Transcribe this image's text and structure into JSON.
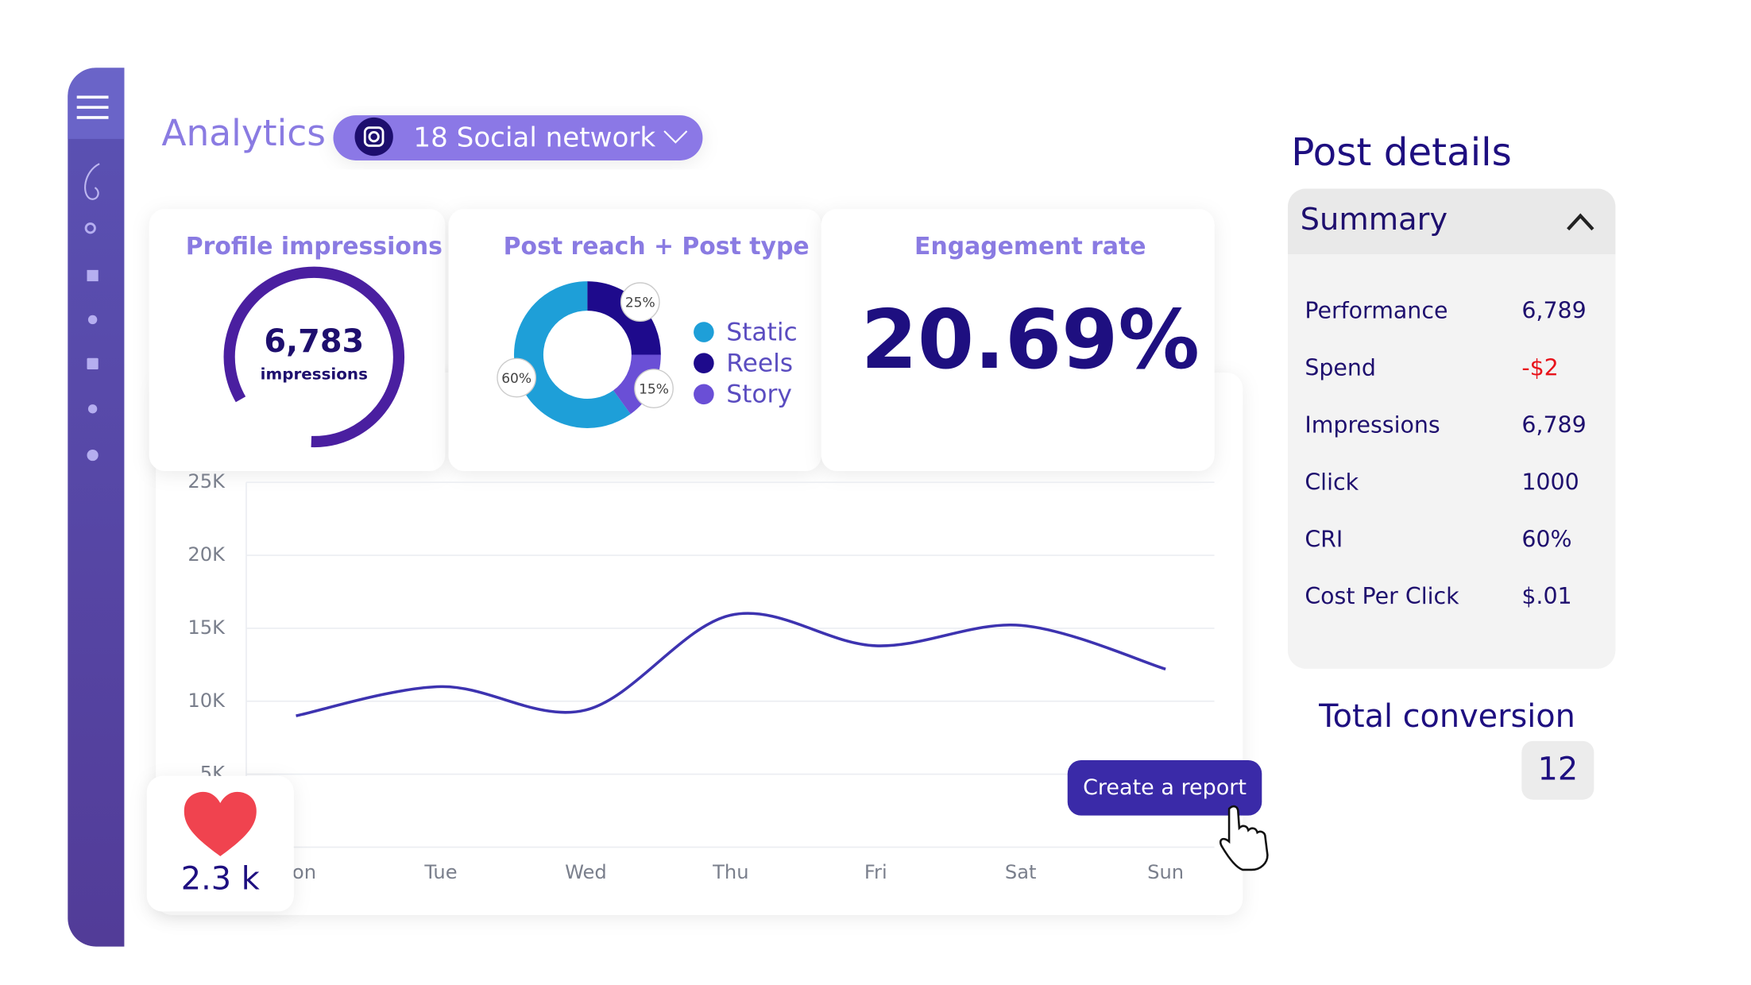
{
  "header": {
    "title": "Analytics",
    "network": "18 Social network"
  },
  "cards": {
    "impressions": {
      "title": "Profile impressions",
      "value": "6,783",
      "unit": "impressions"
    },
    "engagement": {
      "title": "Engagement rate",
      "value": "20.69%"
    },
    "likes": {
      "value": "2.3 k"
    }
  },
  "chart_data": [
    {
      "type": "pie",
      "title": "Post reach + Post type",
      "categories": [
        "Static",
        "Reels",
        "Story"
      ],
      "values": [
        60,
        25,
        15
      ],
      "value_labels": [
        "60%",
        "25%",
        "15%"
      ],
      "colors": [
        "#1e9fd8",
        "#1e0a8c",
        "#6a4fd6"
      ]
    },
    {
      "type": "line",
      "categories": [
        "Mon",
        "Tue",
        "Wed",
        "Thu",
        "Fri",
        "Sat",
        "Sun"
      ],
      "values": [
        9000,
        11000,
        9400,
        15900,
        13800,
        15200,
        12200
      ],
      "color": "#3d33b0",
      "ylim": [
        0,
        25000
      ],
      "yticks": [
        {
          "value": 5000,
          "label": "5K"
        },
        {
          "value": 10000,
          "label": "10K"
        },
        {
          "value": 15000,
          "label": "15K"
        },
        {
          "value": 20000,
          "label": "20K"
        },
        {
          "value": 25000,
          "label": "25K"
        }
      ],
      "grid": true
    }
  ],
  "post_details": {
    "title": "Post details",
    "summary": "Summary",
    "rows": [
      [
        "Performance",
        "6,789"
      ],
      [
        "Spend",
        "-$2"
      ],
      [
        "Impressions",
        "6,789"
      ],
      [
        "Click",
        "1000"
      ],
      [
        "CRI",
        "60%"
      ],
      [
        "Cost Per Click",
        "$.01"
      ]
    ]
  },
  "conversion": {
    "title": "Total conversion",
    "value": "12"
  },
  "button": "Create a report"
}
